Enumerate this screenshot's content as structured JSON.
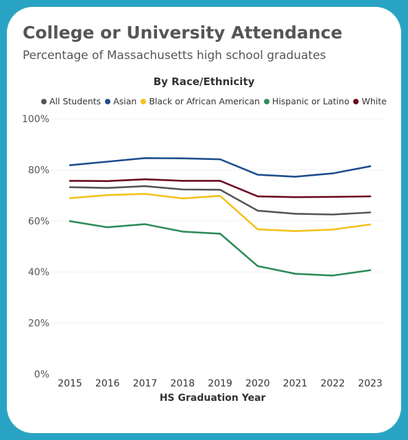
{
  "card": {
    "title": "College or University Attendance",
    "subtitle": "Percentage of Massachusetts high school graduates"
  },
  "colors": {
    "frame": "#29a3c4",
    "all_students": "#555555",
    "asian": "#1f4e8c",
    "black": "#f2c21b",
    "hispanic": "#2e8b57",
    "white": "#6b0a1f"
  },
  "chart_data": {
    "type": "line",
    "title": "By Race/Ethnicity",
    "xlabel": "HS Graduation Year",
    "ylabel": "",
    "x": [
      "2015",
      "2016",
      "2017",
      "2018",
      "2019",
      "2020",
      "2021",
      "2022",
      "2023"
    ],
    "ylim": [
      0,
      100
    ],
    "yticks": [
      "0%",
      "20%",
      "40%",
      "60%",
      "80%",
      "100%"
    ],
    "grid": true,
    "legend_position": "top",
    "series": [
      {
        "name": "All Students",
        "color": "#555555",
        "values": [
          73.2,
          72.9,
          73.6,
          72.3,
          72.2,
          64.0,
          62.8,
          62.5,
          63.3
        ]
      },
      {
        "name": "Asian",
        "color": "#1f4e8c",
        "values": [
          81.8,
          83.2,
          84.6,
          84.5,
          84.1,
          78.1,
          77.3,
          78.6,
          81.4
        ]
      },
      {
        "name": "Black or African American",
        "color": "#f2c21b",
        "values": [
          68.9,
          70.1,
          70.6,
          68.8,
          69.8,
          56.7,
          56.0,
          56.6,
          58.6
        ]
      },
      {
        "name": "Hispanic or Latino",
        "color": "#2e8b57",
        "values": [
          59.9,
          57.5,
          58.7,
          55.8,
          55.0,
          42.3,
          39.3,
          38.6,
          40.7
        ]
      },
      {
        "name": "White",
        "color": "#6b0a1f",
        "values": [
          75.7,
          75.6,
          76.3,
          75.7,
          75.7,
          69.6,
          69.3,
          69.4,
          69.6
        ]
      }
    ]
  }
}
